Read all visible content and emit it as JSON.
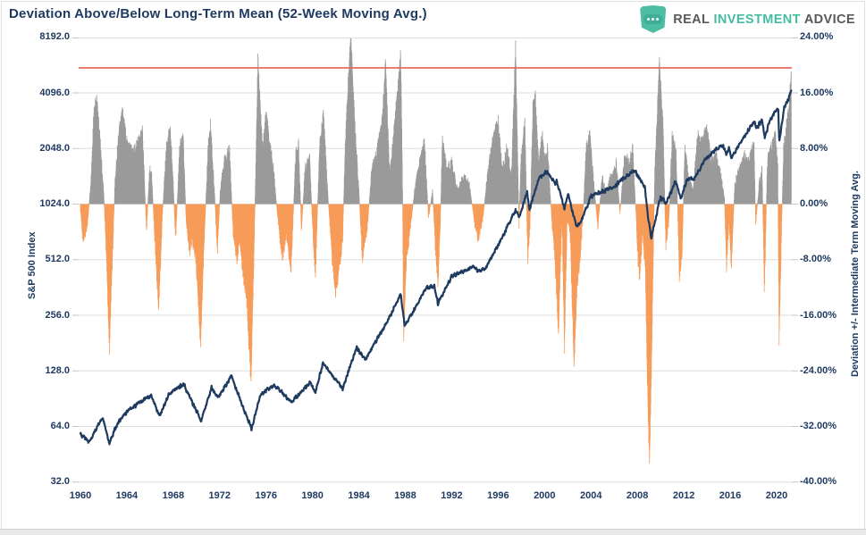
{
  "title": "Deviation Above/Below Long-Term Mean (52-Week Moving Avg.)",
  "logo": {
    "icon": "shield-dots-icon",
    "word1": "REAL",
    "word2": "INVESTMENT",
    "word3": "ADVICE"
  },
  "axes": {
    "left": {
      "label": "S&P 500 Index",
      "ticks": [
        "8192.0",
        "4096.0",
        "2048.0",
        "1024.0",
        "512.0",
        "256.0",
        "128.0",
        "64.0",
        "32.0"
      ]
    },
    "right": {
      "label": "Deviation +/- Intermediate Term Moving Avg.",
      "ticks": [
        "24.00%",
        "16.00%",
        "8.00%",
        "0.00%",
        "-8.00%",
        "-16.00%",
        "-24.00%",
        "-32.00%",
        "-40.00%"
      ]
    },
    "x": {
      "ticks": [
        "1960",
        "1964",
        "1968",
        "1972",
        "1976",
        "1980",
        "1984",
        "1988",
        "1992",
        "1996",
        "2000",
        "2004",
        "2008",
        "2012",
        "2016",
        "2020"
      ]
    }
  },
  "colors": {
    "text_navy": "#1f3a61",
    "bar_positive": "#9a9a9a",
    "bar_negative": "#f79b59",
    "price_line": "#1e3a5f",
    "threshold_line": "#e8695c",
    "gridline": "#dedede",
    "tick_mark": "#c6c6c6",
    "logo_teal": "#43bda1",
    "logo_gray": "#58595b"
  },
  "chart_data": {
    "type": "combo",
    "title": "Deviation Above/Below Long-Term Mean (52-Week Moving Avg.)",
    "x_range": [
      1960,
      2021.3
    ],
    "left_axis": {
      "label": "S&P 500 Index",
      "scale": "log2",
      "range": [
        32,
        8192
      ]
    },
    "right_axis": {
      "label": "Deviation +/- Intermediate Term Moving Avg.",
      "unit": "%",
      "range": [
        -40,
        24
      ],
      "grid_interval": 8
    },
    "threshold_line": {
      "axis": "right",
      "value": 19.6,
      "color": "#e8695c"
    },
    "series": [
      {
        "name": "Deviation +/- Intermediate Term Moving Avg.",
        "type": "bar",
        "axis": "right",
        "unit": "%",
        "color_positive": "#9a9a9a",
        "color_negative": "#f79b59",
        "points": [
          [
            1960.0,
            -1
          ],
          [
            1960.25,
            -5.5
          ],
          [
            1960.6,
            -3
          ],
          [
            1960.9,
            3
          ],
          [
            1961.15,
            13
          ],
          [
            1961.4,
            15.4
          ],
          [
            1961.7,
            9
          ],
          [
            1962.0,
            2
          ],
          [
            1962.25,
            -8
          ],
          [
            1962.5,
            -21
          ],
          [
            1962.75,
            -8
          ],
          [
            1963.0,
            4
          ],
          [
            1963.3,
            10
          ],
          [
            1963.6,
            13.5
          ],
          [
            1964.0,
            9
          ],
          [
            1964.5,
            7.5
          ],
          [
            1965.0,
            9
          ],
          [
            1965.35,
            10.9
          ],
          [
            1965.55,
            2
          ],
          [
            1965.7,
            -4
          ],
          [
            1965.95,
            5
          ],
          [
            1966.15,
            4
          ],
          [
            1966.4,
            -5
          ],
          [
            1966.75,
            -15.4
          ],
          [
            1967.05,
            -2
          ],
          [
            1967.4,
            8
          ],
          [
            1967.75,
            11
          ],
          [
            1968.0,
            3
          ],
          [
            1968.2,
            -5.4
          ],
          [
            1968.55,
            8
          ],
          [
            1968.85,
            10
          ],
          [
            1969.1,
            -2
          ],
          [
            1969.4,
            -7
          ],
          [
            1969.65,
            -5
          ],
          [
            1969.95,
            -8
          ],
          [
            1970.35,
            -20.2
          ],
          [
            1970.7,
            -4
          ],
          [
            1971.0,
            8
          ],
          [
            1971.2,
            11.7
          ],
          [
            1971.55,
            2
          ],
          [
            1971.8,
            -7
          ],
          [
            1972.05,
            2
          ],
          [
            1972.35,
            6
          ],
          [
            1972.85,
            8
          ],
          [
            1973.15,
            -4
          ],
          [
            1973.5,
            -8
          ],
          [
            1973.75,
            -5
          ],
          [
            1974.0,
            -10
          ],
          [
            1974.3,
            -13
          ],
          [
            1974.7,
            -26
          ],
          [
            1975.0,
            -4
          ],
          [
            1975.3,
            21
          ],
          [
            1975.7,
            8
          ],
          [
            1976.0,
            13
          ],
          [
            1976.3,
            9
          ],
          [
            1976.65,
            5
          ],
          [
            1977.0,
            -2
          ],
          [
            1977.4,
            -8
          ],
          [
            1977.75,
            -4
          ],
          [
            1978.15,
            -9.5
          ],
          [
            1978.55,
            7
          ],
          [
            1978.8,
            9
          ],
          [
            1979.05,
            -4
          ],
          [
            1979.35,
            5
          ],
          [
            1979.75,
            7
          ],
          [
            1980.0,
            -3
          ],
          [
            1980.25,
            -10.5
          ],
          [
            1980.6,
            8
          ],
          [
            1980.95,
            13
          ],
          [
            1981.3,
            2
          ],
          [
            1981.7,
            -8
          ],
          [
            1982.0,
            -13
          ],
          [
            1982.35,
            -9
          ],
          [
            1982.6,
            -5
          ],
          [
            1982.85,
            10
          ],
          [
            1983.1,
            18
          ],
          [
            1983.3,
            24.4
          ],
          [
            1983.7,
            10
          ],
          [
            1984.0,
            2
          ],
          [
            1984.3,
            -8
          ],
          [
            1984.75,
            -3
          ],
          [
            1985.1,
            5
          ],
          [
            1985.5,
            7
          ],
          [
            1986.0,
            12
          ],
          [
            1986.3,
            20.7
          ],
          [
            1986.65,
            4
          ],
          [
            1987.0,
            10
          ],
          [
            1987.25,
            15
          ],
          [
            1987.6,
            21.8
          ],
          [
            1987.75,
            5
          ],
          [
            1987.85,
            -20
          ],
          [
            1988.1,
            -8
          ],
          [
            1988.4,
            -4
          ],
          [
            1988.8,
            2
          ],
          [
            1989.2,
            6
          ],
          [
            1989.65,
            9
          ],
          [
            1990.0,
            -2
          ],
          [
            1990.35,
            2
          ],
          [
            1990.55,
            -5
          ],
          [
            1990.8,
            -12
          ],
          [
            1991.0,
            -4
          ],
          [
            1991.2,
            10
          ],
          [
            1991.55,
            5
          ],
          [
            1992.0,
            6
          ],
          [
            1992.5,
            2
          ],
          [
            1993.0,
            4
          ],
          [
            1993.5,
            3
          ],
          [
            1994.0,
            -3
          ],
          [
            1994.3,
            -5
          ],
          [
            1994.7,
            -2
          ],
          [
            1995.0,
            3
          ],
          [
            1995.5,
            9
          ],
          [
            1996.0,
            12
          ],
          [
            1996.35,
            5
          ],
          [
            1996.75,
            8
          ],
          [
            1997.15,
            4
          ],
          [
            1997.5,
            22.9
          ],
          [
            1997.8,
            -3
          ],
          [
            1997.95,
            6
          ],
          [
            1998.3,
            12
          ],
          [
            1998.55,
            -8
          ],
          [
            1998.75,
            -3
          ],
          [
            1999.0,
            14
          ],
          [
            1999.2,
            16
          ],
          [
            1999.5,
            6
          ],
          [
            1999.8,
            10
          ],
          [
            2000.05,
            6
          ],
          [
            2000.25,
            8
          ],
          [
            2000.65,
            -3
          ],
          [
            2000.9,
            -8
          ],
          [
            2001.2,
            -18.5
          ],
          [
            2001.5,
            -2
          ],
          [
            2001.72,
            -20.6
          ],
          [
            2001.95,
            -2
          ],
          [
            2002.2,
            -4
          ],
          [
            2002.55,
            -23.4
          ],
          [
            2002.8,
            -12
          ],
          [
            2003.05,
            -8
          ],
          [
            2003.3,
            -2
          ],
          [
            2003.6,
            8
          ],
          [
            2003.9,
            10
          ],
          [
            2004.3,
            2
          ],
          [
            2004.6,
            -3.5
          ],
          [
            2004.95,
            4
          ],
          [
            2005.3,
            1.5
          ],
          [
            2005.7,
            4
          ],
          [
            2006.2,
            6
          ],
          [
            2006.5,
            -1.5
          ],
          [
            2006.9,
            7
          ],
          [
            2007.3,
            6
          ],
          [
            2007.6,
            8
          ],
          [
            2007.9,
            -2
          ],
          [
            2008.05,
            -8
          ],
          [
            2008.2,
            -10.8
          ],
          [
            2008.45,
            -4
          ],
          [
            2008.7,
            -10
          ],
          [
            2008.85,
            -25
          ],
          [
            2009.05,
            -38.2
          ],
          [
            2009.3,
            -15
          ],
          [
            2009.5,
            5
          ],
          [
            2009.9,
            20.3
          ],
          [
            2010.2,
            12
          ],
          [
            2010.45,
            -6
          ],
          [
            2010.7,
            -3
          ],
          [
            2011.0,
            10
          ],
          [
            2011.35,
            7
          ],
          [
            2011.62,
            -10.5
          ],
          [
            2011.85,
            -7
          ],
          [
            2012.1,
            8
          ],
          [
            2012.4,
            4
          ],
          [
            2012.8,
            2
          ],
          [
            2013.2,
            10
          ],
          [
            2013.6,
            9
          ],
          [
            2014.0,
            11
          ],
          [
            2014.4,
            6
          ],
          [
            2014.8,
            7
          ],
          [
            2015.2,
            4
          ],
          [
            2015.5,
            1
          ],
          [
            2015.68,
            -9.6
          ],
          [
            2015.9,
            -2
          ],
          [
            2016.1,
            -9
          ],
          [
            2016.4,
            3
          ],
          [
            2016.8,
            5
          ],
          [
            2017.2,
            7
          ],
          [
            2017.6,
            6
          ],
          [
            2018.05,
            9
          ],
          [
            2018.2,
            -3
          ],
          [
            2018.5,
            3
          ],
          [
            2018.75,
            5
          ],
          [
            2018.95,
            -13
          ],
          [
            2019.2,
            6
          ],
          [
            2019.5,
            8
          ],
          [
            2019.9,
            10
          ],
          [
            2020.1,
            5
          ],
          [
            2020.22,
            -19.5
          ],
          [
            2020.45,
            -2
          ],
          [
            2020.6,
            8
          ],
          [
            2020.9,
            12
          ],
          [
            2021.05,
            13.5
          ],
          [
            2021.27,
            19.6
          ]
        ]
      },
      {
        "name": "S&P 500 Index",
        "type": "line",
        "axis": "left",
        "scale": "log2",
        "color": "#1e3a5f",
        "points": [
          [
            1960.0,
            58
          ],
          [
            1960.8,
            53
          ],
          [
            1961.9,
            72
          ],
          [
            1962.5,
            52
          ],
          [
            1963.1,
            65
          ],
          [
            1964.0,
            77
          ],
          [
            1965.0,
            86
          ],
          [
            1966.1,
            94
          ],
          [
            1966.8,
            73
          ],
          [
            1967.7,
            97
          ],
          [
            1968.9,
            108
          ],
          [
            1970.4,
            69
          ],
          [
            1971.3,
            104
          ],
          [
            1971.85,
            92
          ],
          [
            1973.0,
            120
          ],
          [
            1974.75,
            62
          ],
          [
            1975.5,
            95
          ],
          [
            1976.7,
            107
          ],
          [
            1978.2,
            87
          ],
          [
            1979.8,
            111
          ],
          [
            1980.25,
            98
          ],
          [
            1980.9,
            140
          ],
          [
            1982.6,
            102
          ],
          [
            1983.8,
            172
          ],
          [
            1984.55,
            147
          ],
          [
            1986.7,
            253
          ],
          [
            1987.6,
            336
          ],
          [
            1987.95,
            223
          ],
          [
            1989.8,
            360
          ],
          [
            1990.5,
            368
          ],
          [
            1990.8,
            295
          ],
          [
            1992.0,
            417
          ],
          [
            1993.9,
            470
          ],
          [
            1994.35,
            440
          ],
          [
            1995.0,
            465
          ],
          [
            1996.0,
            615
          ],
          [
            1997.5,
            950
          ],
          [
            1997.85,
            880
          ],
          [
            1998.5,
            1190
          ],
          [
            1998.7,
            957
          ],
          [
            1999.5,
            1420
          ],
          [
            2000.2,
            1527
          ],
          [
            2000.9,
            1320
          ],
          [
            2001.05,
            1373
          ],
          [
            2001.72,
            966
          ],
          [
            2002.0,
            1170
          ],
          [
            2002.75,
            776
          ],
          [
            2003.2,
            835
          ],
          [
            2004.0,
            1130
          ],
          [
            2005.0,
            1200
          ],
          [
            2006.0,
            1280
          ],
          [
            2007.75,
            1565
          ],
          [
            2008.65,
            1255
          ],
          [
            2008.9,
            880
          ],
          [
            2009.2,
            676
          ],
          [
            2010.0,
            1115
          ],
          [
            2010.5,
            1030
          ],
          [
            2011.3,
            1363
          ],
          [
            2011.75,
            1099
          ],
          [
            2012.3,
            1400
          ],
          [
            2012.9,
            1410
          ],
          [
            2013.9,
            1800
          ],
          [
            2014.7,
            2010
          ],
          [
            2015.4,
            2130
          ],
          [
            2015.65,
            1870
          ],
          [
            2015.9,
            2080
          ],
          [
            2016.1,
            1829
          ],
          [
            2017.0,
            2270
          ],
          [
            2018.07,
            2873
          ],
          [
            2018.25,
            2640
          ],
          [
            2018.73,
            2930
          ],
          [
            2018.98,
            2351
          ],
          [
            2019.5,
            2990
          ],
          [
            2020.14,
            3386
          ],
          [
            2020.23,
            2237
          ],
          [
            2020.65,
            3430
          ],
          [
            2021.0,
            3760
          ],
          [
            2021.27,
            4300
          ]
        ]
      }
    ]
  }
}
